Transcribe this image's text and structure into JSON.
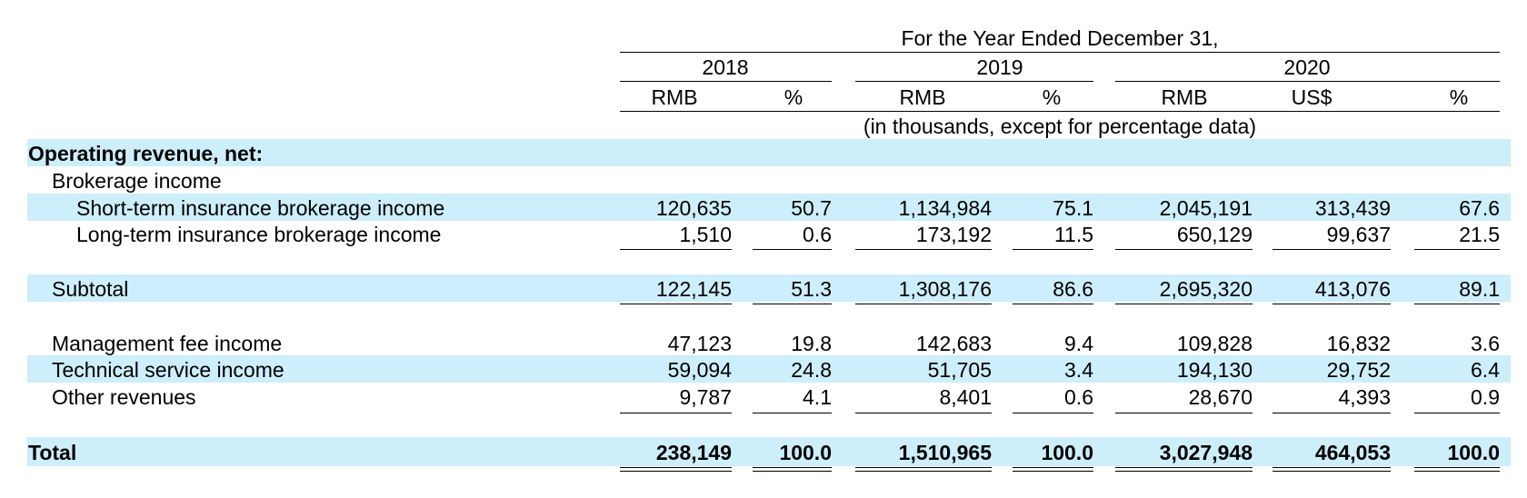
{
  "header": {
    "period_title": "For the Year Ended December 31,",
    "years": [
      "2018",
      "2019",
      "2020"
    ],
    "columns": [
      "RMB",
      "%",
      "RMB",
      "%",
      "RMB",
      "US$",
      "%"
    ],
    "units_note": "(in thousands, except for percentage data)"
  },
  "rows": {
    "operating_revenue": {
      "label": "Operating revenue, net:"
    },
    "brokerage_income": {
      "label": "Brokerage income"
    },
    "short_term": {
      "label": "Short-term insurance brokerage income",
      "values": [
        "120,635",
        "50.7",
        "1,134,984",
        "75.1",
        "2,045,191",
        "313,439",
        "67.6"
      ]
    },
    "long_term": {
      "label": "Long-term insurance brokerage income",
      "values": [
        "1,510",
        "0.6",
        "173,192",
        "11.5",
        "650,129",
        "99,637",
        "21.5"
      ]
    },
    "subtotal": {
      "label": "Subtotal",
      "values": [
        "122,145",
        "51.3",
        "1,308,176",
        "86.6",
        "2,695,320",
        "413,076",
        "89.1"
      ]
    },
    "management_fee": {
      "label": "Management fee income",
      "values": [
        "47,123",
        "19.8",
        "142,683",
        "9.4",
        "109,828",
        "16,832",
        "3.6"
      ]
    },
    "technical_service": {
      "label": "Technical service income",
      "values": [
        "59,094",
        "24.8",
        "51,705",
        "3.4",
        "194,130",
        "29,752",
        "6.4"
      ]
    },
    "other_revenues": {
      "label": "Other revenues",
      "values": [
        "9,787",
        "4.1",
        "8,401",
        "0.6",
        "28,670",
        "4,393",
        "0.9"
      ]
    },
    "total": {
      "label": "Total",
      "values": [
        "238,149",
        "100.0",
        "1,510,965",
        "100.0",
        "3,027,948",
        "464,053",
        "100.0"
      ]
    }
  },
  "colors": {
    "row_shade": "#cdeefb",
    "text": "#000000"
  }
}
